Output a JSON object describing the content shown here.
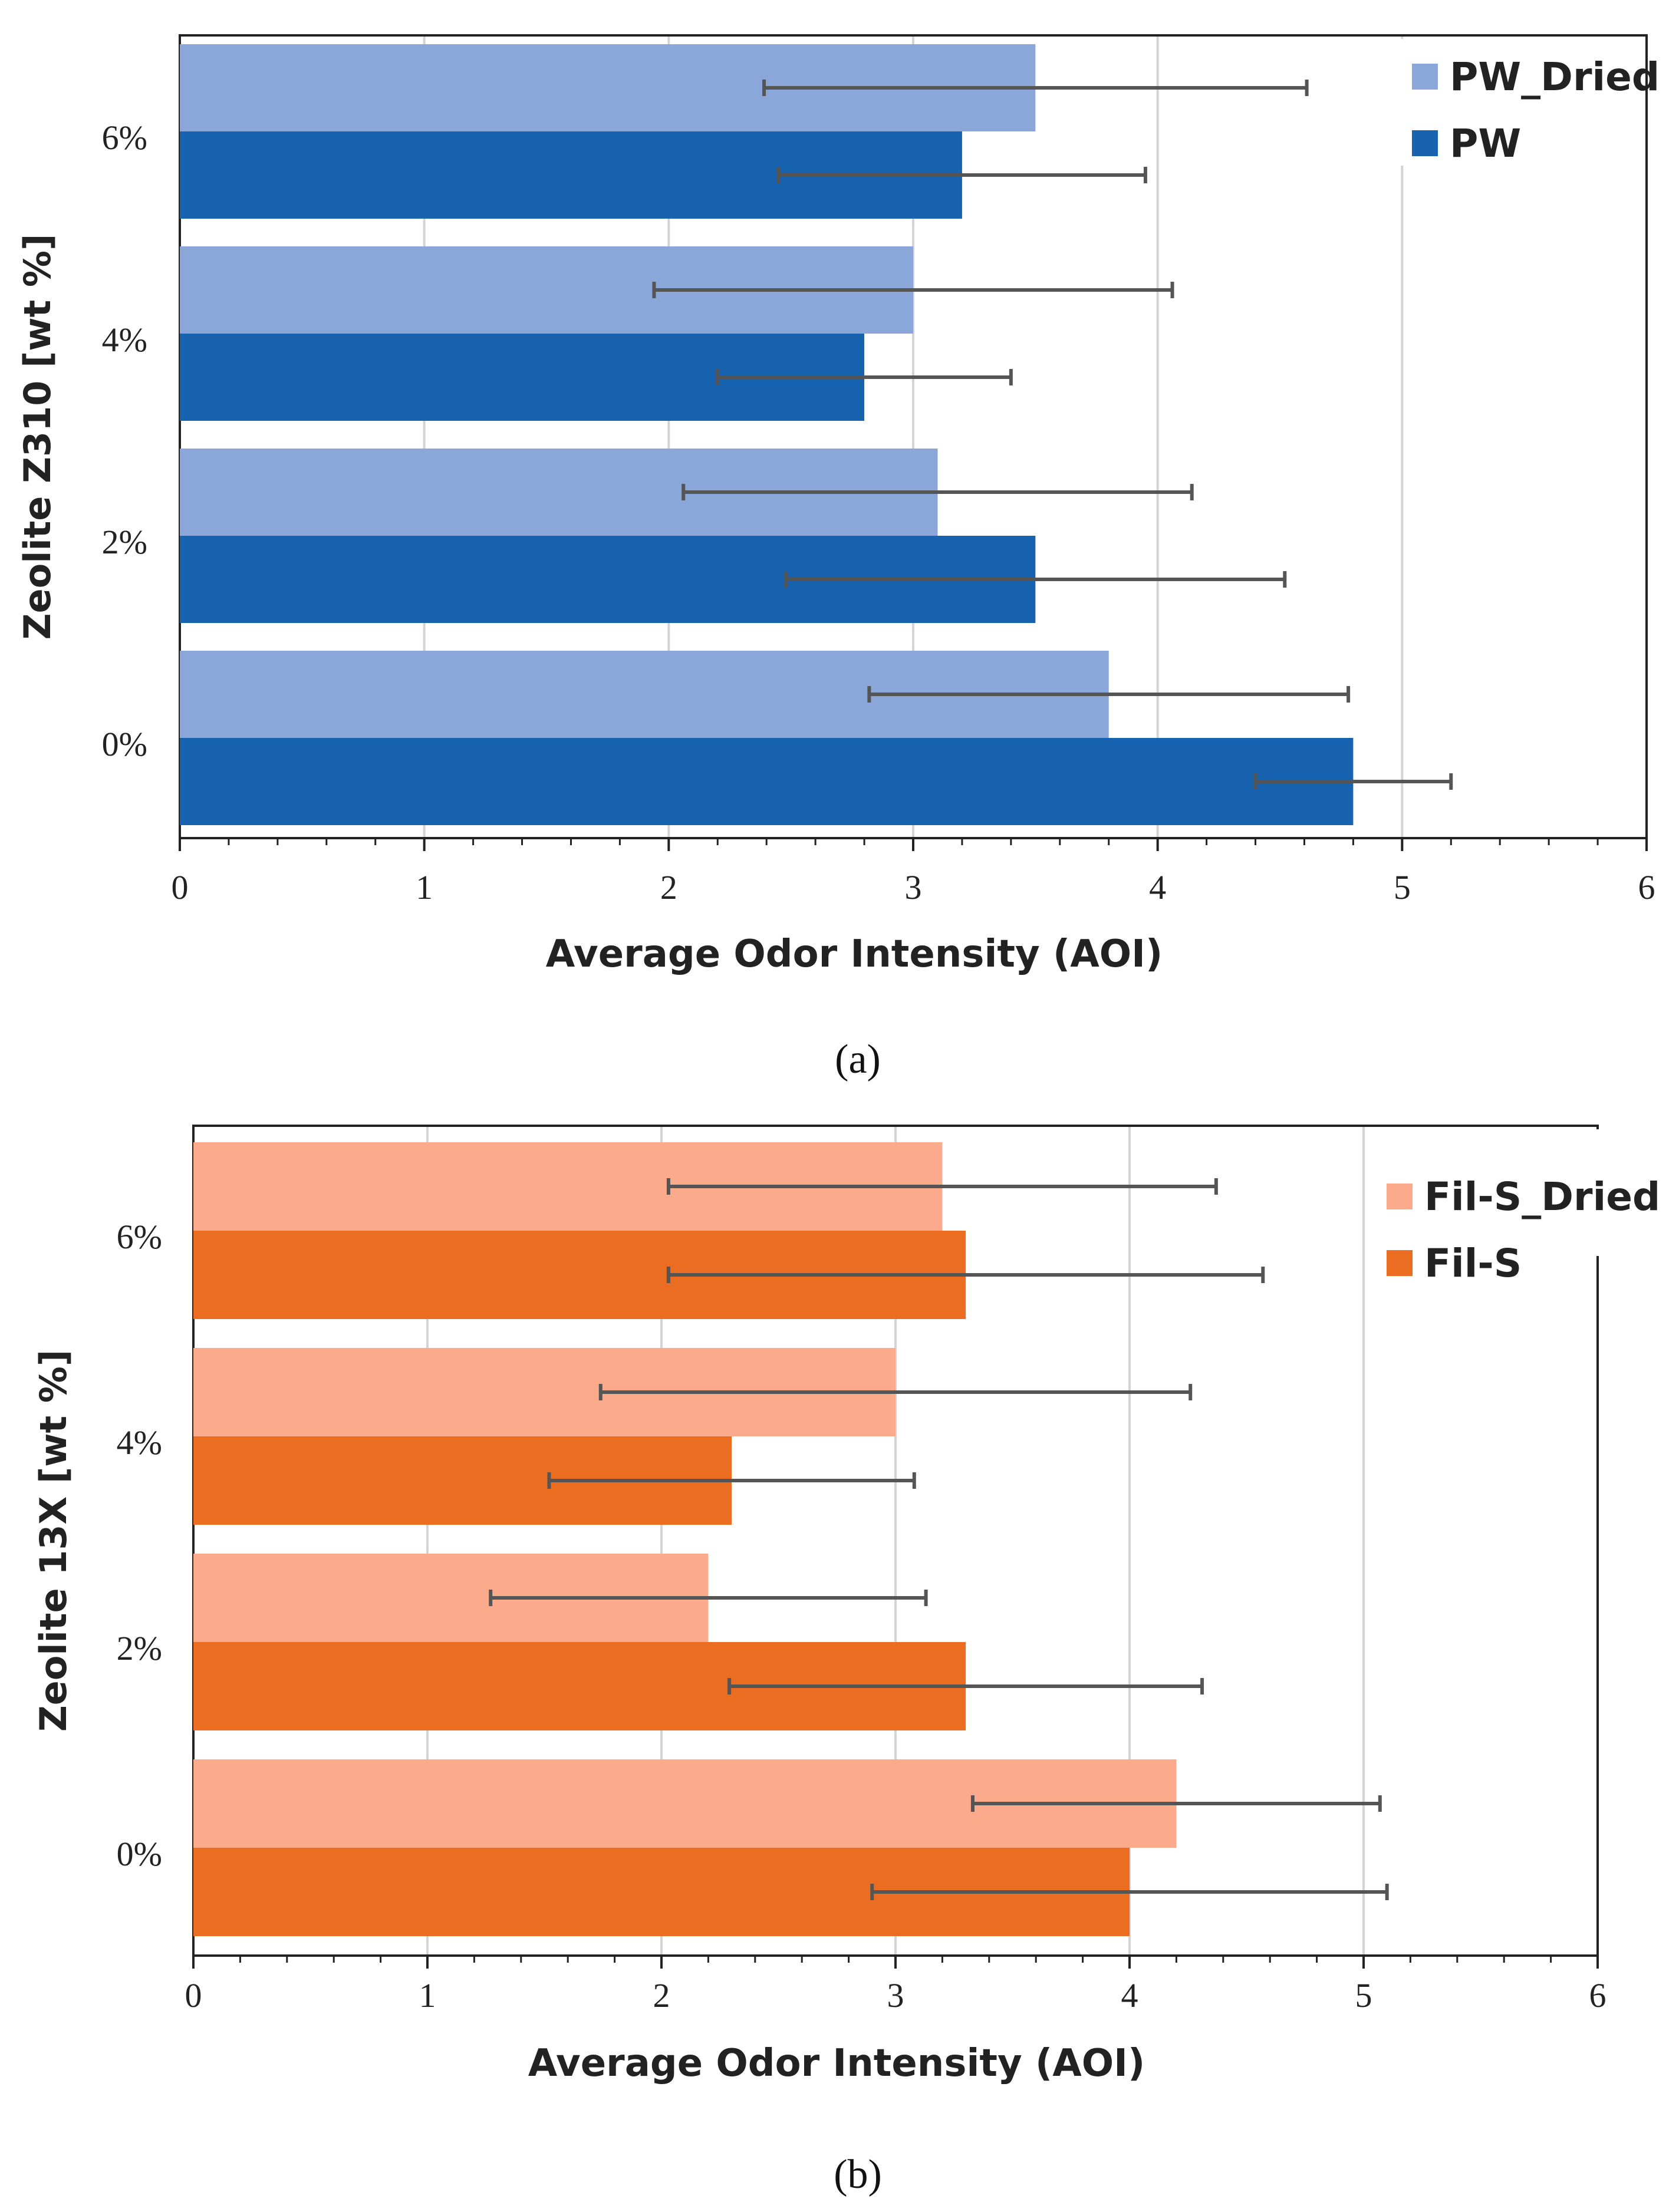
{
  "chart_data": [
    {
      "type": "bar",
      "orientation": "horizontal",
      "panel_caption": "(a)",
      "ylabel": "Zeolite Z310 [wt %]",
      "xlabel": "Average Odor Intensity (AOI)",
      "xlim": [
        0,
        6
      ],
      "xticks": [
        "0",
        "1",
        "2",
        "3",
        "4",
        "5",
        "6"
      ],
      "categories": [
        "0%",
        "2%",
        "4%",
        "6%"
      ],
      "series": [
        {
          "name": "PW_Dried",
          "color": "#8BA6D8",
          "values": [
            3.8,
            3.1,
            3.0,
            3.5
          ],
          "errors": [
            0.98,
            1.04,
            1.06,
            1.11
          ]
        },
        {
          "name": "PW",
          "color": "#1763B0",
          "values": [
            4.8,
            3.5,
            2.8,
            3.2
          ],
          "errors": [
            0.4,
            1.02,
            0.6,
            0.75
          ]
        }
      ],
      "grid": true,
      "legend_position": "top-right"
    },
    {
      "type": "bar",
      "orientation": "horizontal",
      "panel_caption": "(b)",
      "ylabel": "Zeolite 13X [wt %]",
      "xlabel": "Average Odor Intensity (AOI)",
      "xlim": [
        0,
        6
      ],
      "xticks": [
        "0",
        "1",
        "2",
        "3",
        "4",
        "5",
        "6"
      ],
      "categories": [
        "0%",
        "2%",
        "4%",
        "6%"
      ],
      "series": [
        {
          "name": "Fil-S_Dried",
          "color": "#FBAA8C",
          "values": [
            4.2,
            2.2,
            3.0,
            3.2
          ],
          "errors": [
            0.87,
            0.93,
            1.26,
            1.17
          ]
        },
        {
          "name": "Fil-S",
          "color": "#EB6D22",
          "values": [
            4.0,
            3.3,
            2.3,
            3.3
          ],
          "errors": [
            1.1,
            1.01,
            0.78,
            1.27
          ]
        }
      ],
      "grid": true,
      "legend_position": "top-right"
    }
  ]
}
